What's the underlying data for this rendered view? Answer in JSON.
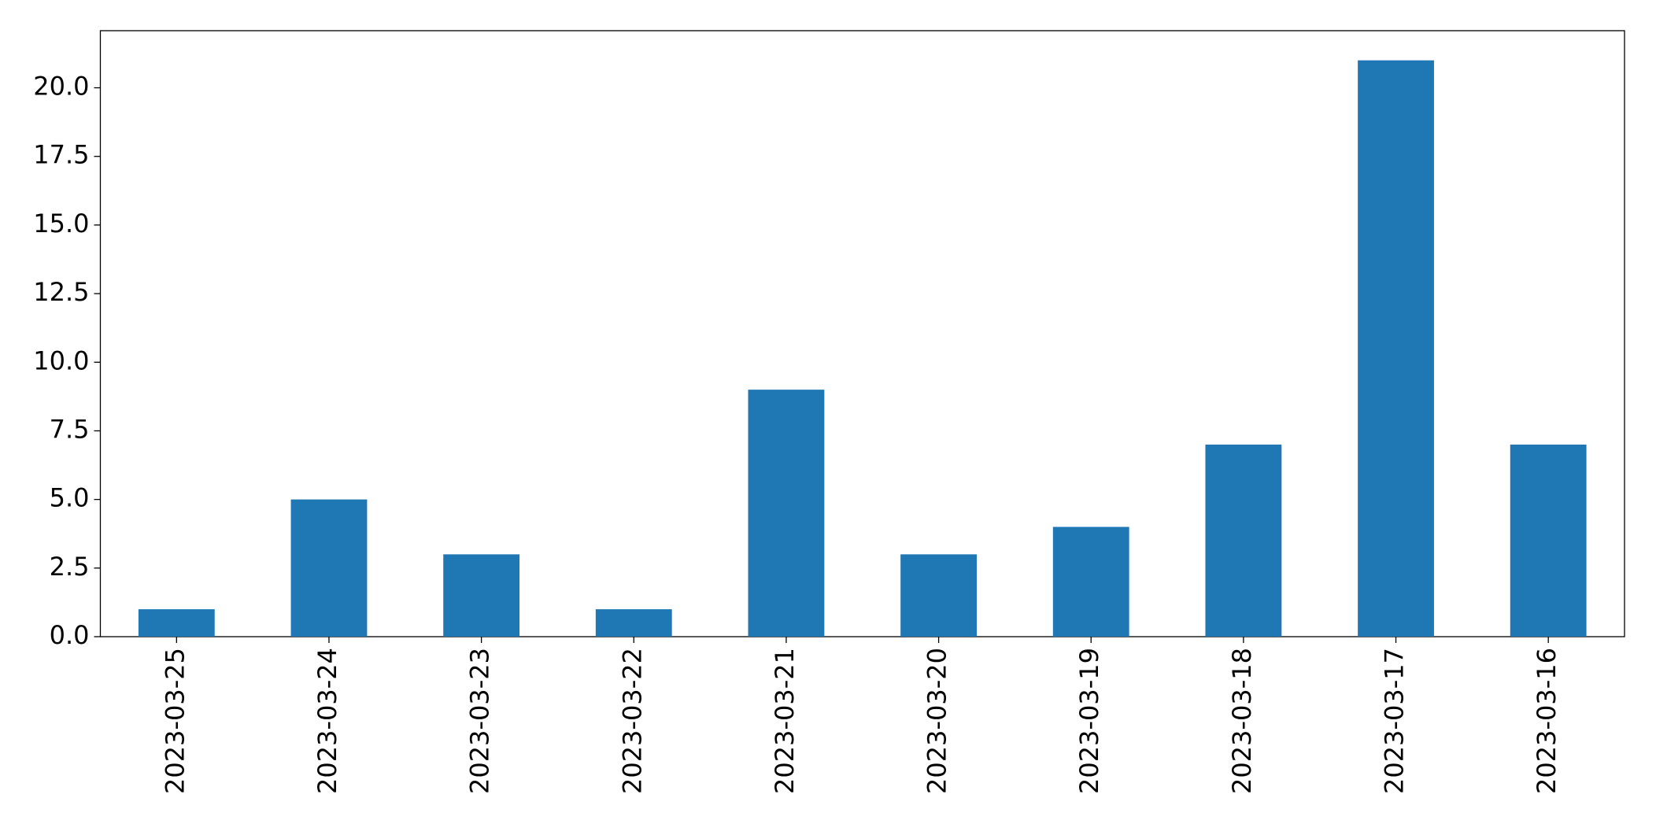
{
  "chart_data": {
    "type": "bar",
    "categories": [
      "2023-03-25",
      "2023-03-24",
      "2023-03-23",
      "2023-03-22",
      "2023-03-21",
      "2023-03-20",
      "2023-03-19",
      "2023-03-18",
      "2023-03-17",
      "2023-03-16"
    ],
    "values": [
      1,
      5,
      3,
      1,
      9,
      3,
      4,
      7,
      21,
      7
    ],
    "color": "#1f77b4",
    "ylim": [
      0,
      22.08
    ],
    "yticks": [
      {
        "value": 0,
        "label": "0.0"
      },
      2.5,
      {
        "value": 5,
        "label": "5.0"
      },
      7.5,
      {
        "value": 10,
        "label": "10.0"
      },
      12.5,
      {
        "value": 15,
        "label": "15.0"
      },
      17.5,
      {
        "value": 20,
        "label": "20.0"
      }
    ],
    "grid": false
  }
}
